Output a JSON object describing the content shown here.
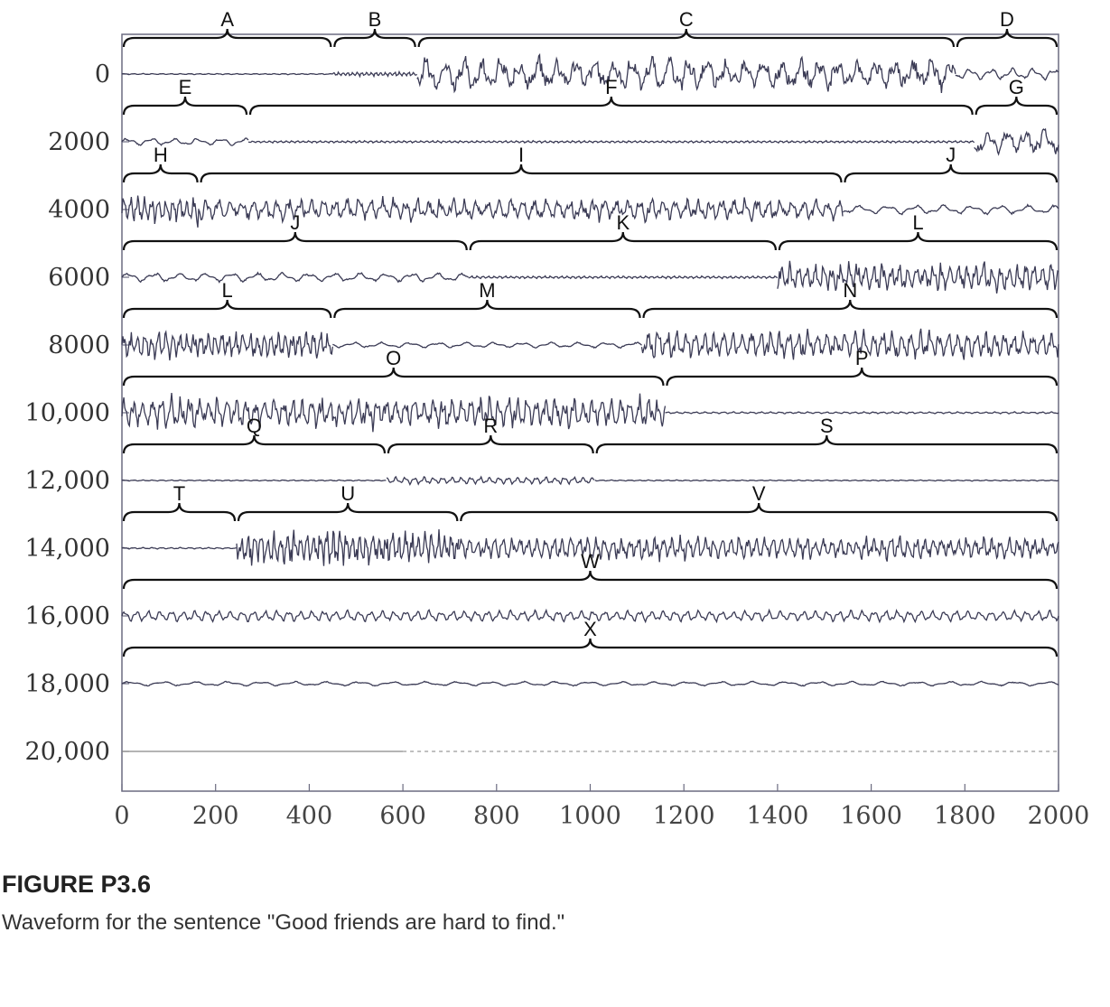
{
  "caption": {
    "label": "FIGURE P3.6",
    "text": "Waveform for the sentence \"Good friends are hard to find.\""
  },
  "chart_data": {
    "type": "line",
    "title": "",
    "xlabel": "",
    "ylabel": "",
    "xlim": [
      0,
      2000
    ],
    "ylim": [
      0,
      20000
    ],
    "x_ticks": [
      "0",
      "200",
      "400",
      "600",
      "800",
      "1000",
      "1200",
      "1400",
      "1600",
      "1800",
      "2000"
    ],
    "y_ticks": [
      "0",
      "2000",
      "4000",
      "6000",
      "8000",
      "10,000",
      "12,000",
      "14,000",
      "16,000",
      "18,000",
      "20,000"
    ],
    "colors": {
      "waveform": "#3b3b55",
      "frame": "#6b6b80",
      "brace": "#111111"
    },
    "rows": [
      {
        "offset": 0,
        "segments": [
          {
            "label": "A",
            "start": 0,
            "end": 450,
            "amplitude": 0.03,
            "period": 20
          },
          {
            "label": "B",
            "start": 450,
            "end": 630,
            "amplitude": 0.12,
            "period": 10
          },
          {
            "label": "C",
            "start": 630,
            "end": 1780,
            "amplitude": 0.8,
            "period": 40
          },
          {
            "label": "D",
            "start": 1780,
            "end": 2000,
            "amplitude": 0.3,
            "period": 45
          }
        ]
      },
      {
        "offset": 2000,
        "segments": [
          {
            "label": "E",
            "start": 0,
            "end": 270,
            "amplitude": 0.2,
            "period": 50
          },
          {
            "label": "F",
            "start": 270,
            "end": 1820,
            "amplitude": 0.06,
            "period": 12
          },
          {
            "label": "G",
            "start": 1820,
            "end": 2000,
            "amplitude": 0.6,
            "period": 40
          }
        ]
      },
      {
        "offset": 4000,
        "segments": [
          {
            "label": "H",
            "start": 0,
            "end": 165,
            "amplitude": 0.7,
            "period": 15
          },
          {
            "label": "I",
            "start": 165,
            "end": 1540,
            "amplitude": 0.55,
            "period": 25
          },
          {
            "label": "J",
            "start": 1540,
            "end": 2000,
            "amplitude": 0.25,
            "period": 60
          }
        ]
      },
      {
        "offset": 6000,
        "segments": [
          {
            "label": "J",
            "start": 0,
            "end": 740,
            "amplitude": 0.25,
            "period": 55
          },
          {
            "label": "K",
            "start": 740,
            "end": 1400,
            "amplitude": 0.07,
            "period": 12
          },
          {
            "label": "L",
            "start": 1400,
            "end": 2000,
            "amplitude": 0.7,
            "period": 18
          }
        ]
      },
      {
        "offset": 8000,
        "segments": [
          {
            "label": "L",
            "start": 0,
            "end": 450,
            "amplitude": 0.7,
            "period": 15
          },
          {
            "label": "M",
            "start": 450,
            "end": 1110,
            "amplitude": 0.15,
            "period": 60
          },
          {
            "label": "N",
            "start": 1110,
            "end": 2000,
            "amplitude": 0.7,
            "period": 20
          }
        ]
      },
      {
        "offset": 10000,
        "segments": [
          {
            "label": "O",
            "start": 0,
            "end": 1160,
            "amplitude": 0.75,
            "period": 20
          },
          {
            "label": "P",
            "start": 1160,
            "end": 2000,
            "amplitude": 0.05,
            "period": 20
          }
        ]
      },
      {
        "offset": 12000,
        "segments": [
          {
            "label": "Q",
            "start": 0,
            "end": 565,
            "amplitude": 0.03,
            "period": 20
          },
          {
            "label": "R",
            "start": 565,
            "end": 1010,
            "amplitude": 0.2,
            "period": 20
          },
          {
            "label": "S",
            "start": 1010,
            "end": 2000,
            "amplitude": 0.03,
            "period": 20
          }
        ]
      },
      {
        "offset": 14000,
        "segments": [
          {
            "label": "T",
            "start": 0,
            "end": 245,
            "amplitude": 0.04,
            "period": 20
          },
          {
            "label": "U",
            "start": 245,
            "end": 720,
            "amplitude": 0.85,
            "period": 14
          },
          {
            "label": "V",
            "start": 720,
            "end": 2000,
            "amplitude": 0.55,
            "period": 18
          }
        ]
      },
      {
        "offset": 16000,
        "segments": [
          {
            "label": "W",
            "start": 0,
            "end": 2000,
            "amplitude": 0.3,
            "period": 25
          }
        ]
      },
      {
        "offset": 18000,
        "segments": [
          {
            "label": "X",
            "start": 0,
            "end": 2000,
            "amplitude": 0.12,
            "period": 70
          }
        ]
      },
      {
        "offset": 20000,
        "segments": []
      }
    ]
  }
}
